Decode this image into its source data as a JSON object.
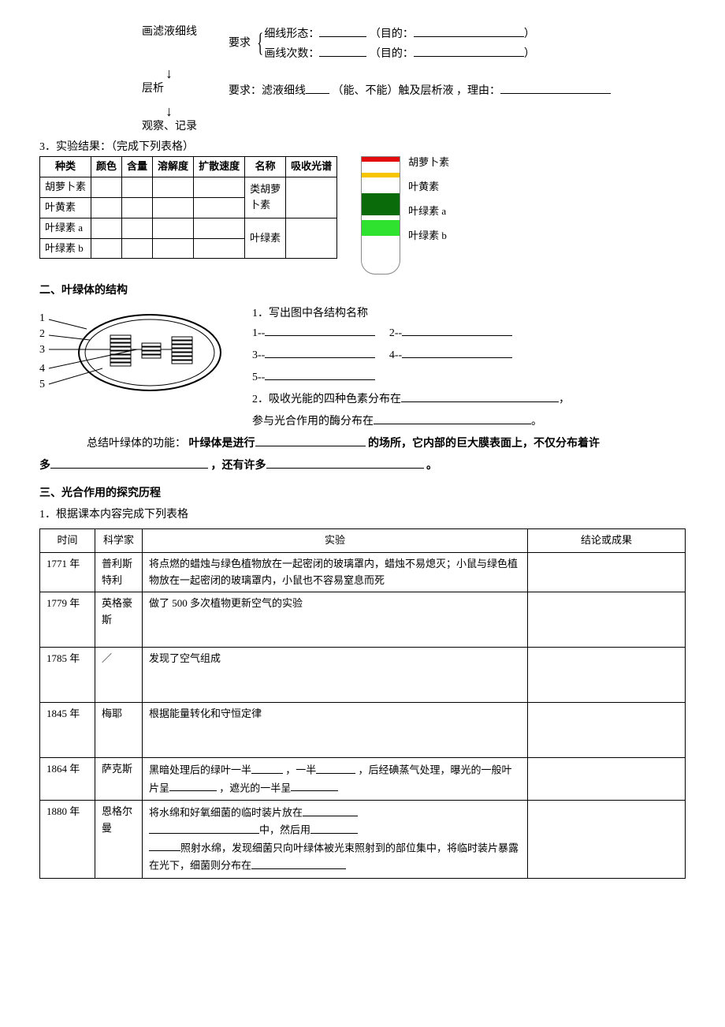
{
  "flow": {
    "step1": "画滤液细线",
    "req_label": "要求",
    "line_shape_label": "细线形态：",
    "purpose_label": "（目的：",
    "close_paren": "）",
    "line_count_label": "画线次数：",
    "step2": "层析",
    "step2_req_prefix": "要求：滤液细线",
    "step2_req_mid": "（能、不能）触及层析液 ，理由：",
    "step3": "观察、记录"
  },
  "results": {
    "heading": "3．实验结果：（完成下列表格）",
    "headers": [
      "种类",
      "颜色",
      "含量",
      "溶解度",
      "扩散速度",
      "名称",
      "吸收光谱"
    ],
    "rows": [
      {
        "kind": "胡萝卜素",
        "name": "类胡萝"
      },
      {
        "kind": "叶黄素",
        "name": "卜素"
      },
      {
        "kind": "叶绿素 a",
        "name": "叶绿素"
      },
      {
        "kind": "叶绿素 b",
        "name": ""
      }
    ],
    "strip": {
      "bands": [
        {
          "color": "#e30b0b",
          "height": 6
        },
        {
          "gap": 14
        },
        {
          "color": "#f7c400",
          "height": 6
        },
        {
          "gap": 20
        },
        {
          "color": "#0a6b0a",
          "height": 28
        },
        {
          "gap": 6
        },
        {
          "color": "#2fe22f",
          "height": 20
        }
      ],
      "labels": [
        "胡萝卜素",
        "叶黄素",
        "叶绿素 a",
        "叶绿素 b"
      ]
    }
  },
  "section2": {
    "title": "二、叶绿体的结构",
    "q1": "1．写出图中各结构名称",
    "l1": "1--",
    "l2": "2--",
    "l3": "3--",
    "l4": "4--",
    "l5": "5--",
    "q2_prefix": "2．吸收光能的四种色素分布在",
    "q2_suffix": "，",
    "q2b_prefix": "参与光合作用的酶分布在",
    "q2b_suffix": "。",
    "summary_prefix": "总结叶绿体的功能：",
    "summary_bold1": "叶绿体是进行",
    "summary_bold2": "的场所，它内部的巨大膜表面上，不仅分布着许",
    "summary_bold3": "多",
    "summary_bold4": "，还有许多",
    "summary_bold5": "。"
  },
  "section3": {
    "title": "三、光合作用的探究历程",
    "subtitle": "1．根据课本内容完成下列表格",
    "headers": [
      "时间",
      "科学家",
      "实验",
      "结论或成果"
    ],
    "rows": [
      {
        "time": "1771 年",
        "sci": "普利斯特利",
        "exp": "将点燃的蜡烛与绿色植物放在一起密闭的玻璃罩内，蜡烛不易熄灭；小鼠与绿色植物放在一起密闭的玻璃罩内，小鼠也不容易窒息而死"
      },
      {
        "time": "1779 年",
        "sci": "英格豪斯",
        "exp": "做了 500 多次植物更新空气的实验"
      },
      {
        "time": "1785 年",
        "sci": "／",
        "exp": "发现了空气组成"
      },
      {
        "time": "1845 年",
        "sci": "梅耶",
        "exp": "根据能量转化和守恒定律"
      },
      {
        "time": "1864 年",
        "sci": "萨克斯",
        "exp_prefix": "黑暗处理后的绿叶一半",
        "exp_mid1": "，一半",
        "exp_mid2": "，后经碘蒸气处理，曝光的一般叶片呈",
        "exp_mid3": "，遮光的一半呈"
      },
      {
        "time": "1880 年",
        "sci": "恩格尔曼",
        "exp_a": "将水绵和好氧细菌的临时装片放在",
        "exp_b": "中，然后用",
        "exp_c": "照射水绵，发现细菌只向叶绿体被光束照射到的部位集中，将临时装片暴露在光下，细菌则分布在"
      }
    ]
  }
}
